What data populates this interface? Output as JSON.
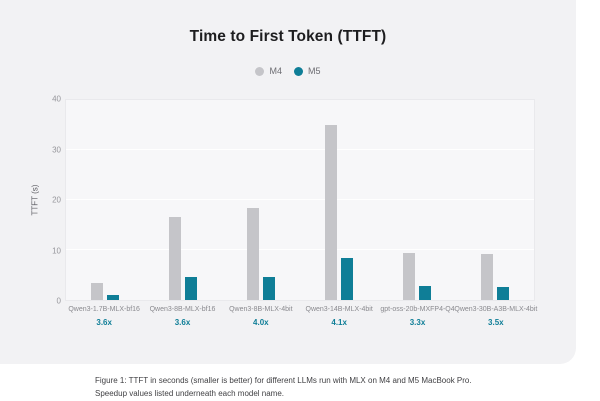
{
  "chart": {
    "title": "Time to First Token (TTFT)",
    "ylabel": "TTFT (s)"
  },
  "chart_data": {
    "type": "bar",
    "title": "Time to First Token (TTFT)",
    "categories": [
      "Qwen3-1.7B-MLX-bf16",
      "Qwen3-8B-MLX-bf16",
      "Qwen3-8B-MLX-4bit",
      "Qwen3-14B-MLX-4bit",
      "gpt-oss-20b-MXFP4-Q4",
      "Qwen3-30B-A3B-MLX-4bit"
    ],
    "series": [
      {
        "name": "M4",
        "color": "#c5c5c9",
        "values": [
          3.5,
          16.6,
          18.5,
          35.0,
          9.5,
          9.2
        ]
      },
      {
        "name": "M5",
        "color": "#0f7e97",
        "values": [
          1.0,
          4.6,
          4.6,
          8.5,
          2.9,
          2.6
        ]
      }
    ],
    "speedups": [
      "3.6x",
      "3.6x",
      "4.0x",
      "4.1x",
      "3.3x",
      "3.5x"
    ],
    "xlabel": "",
    "ylabel": "TTFT (s)",
    "ylim": [
      0,
      40
    ],
    "yticks": [
      0,
      10,
      20,
      30,
      40
    ],
    "grid": true,
    "legend_position": "top-center"
  },
  "caption": "Figure 1: TTFT in seconds (smaller is better) for different LLMs run with MLX on M4 and M5 MacBook Pro. Speedup values listed underneath each model name.",
  "colors": {
    "card_background": "#f2f2f4",
    "plot_background": "#f7f7f9",
    "gridline": "#ffffff",
    "m4_bar": "#c5c5c9",
    "m5_bar": "#0f7e97",
    "speedup_text": "#0f7e97"
  }
}
